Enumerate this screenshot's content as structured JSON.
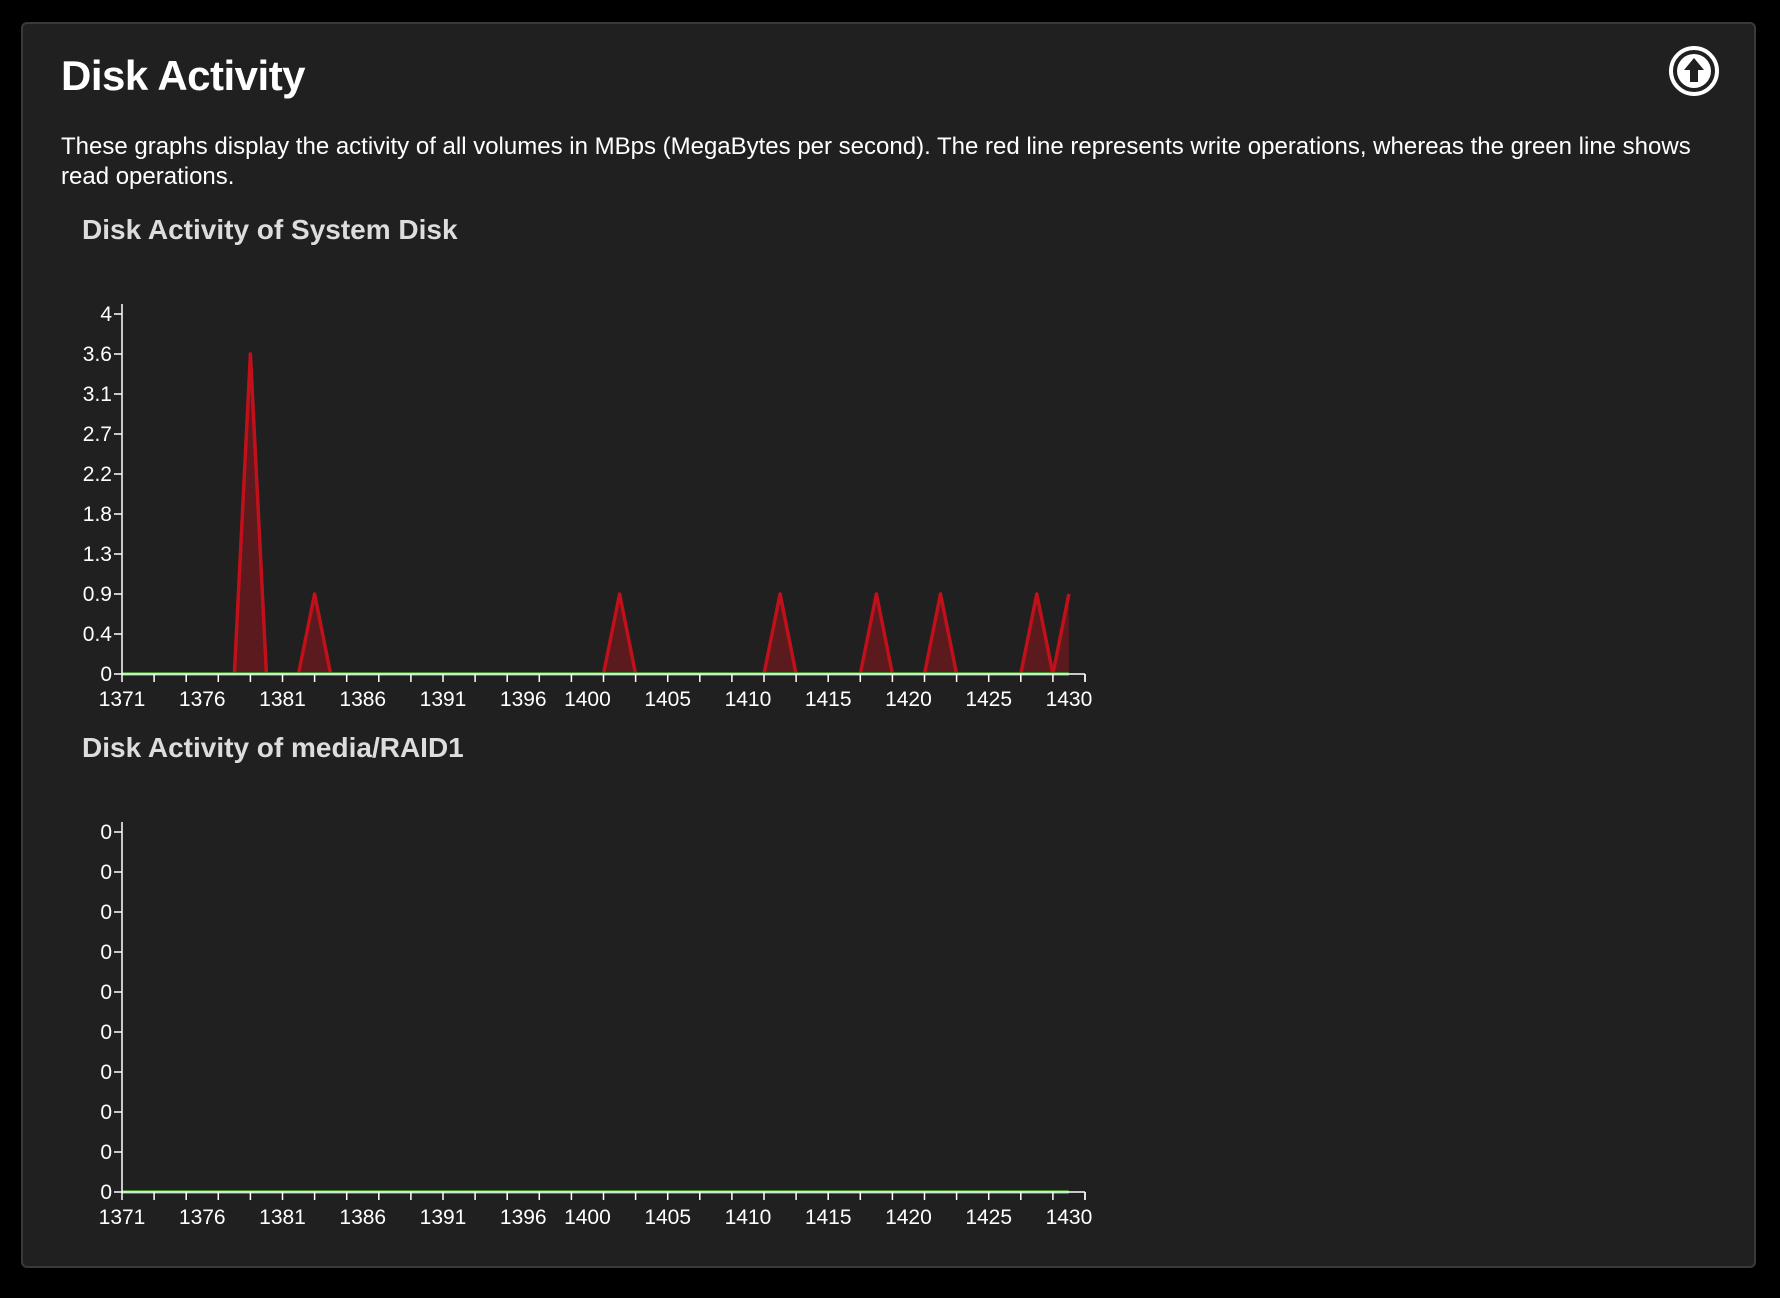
{
  "panel": {
    "title": "Disk Activity",
    "description": "These graphs display the activity of all volumes in MBps (MegaBytes per second). The red line represents write operations, whereas the green line shows read operations.",
    "collapse_icon": "arrow-up-circle-icon"
  },
  "colors": {
    "background": "#000000",
    "panel": "#202020",
    "write_line": "#c0101a",
    "write_fill": "#5a1a1e",
    "read_line": "#2fae2f",
    "axis": "#ffffff"
  },
  "chart_data": [
    {
      "type": "area",
      "title": "Disk Activity of System Disk",
      "xlabel": "",
      "ylabel": "",
      "xlim": [
        1371,
        1431
      ],
      "ylim": [
        0,
        4.5
      ],
      "x_ticks": [
        1371,
        1376,
        1381,
        1386,
        1391,
        1396,
        1400,
        1405,
        1410,
        1415,
        1420,
        1425,
        1430
      ],
      "y_ticks": [
        "0",
        "0.4",
        "0.9",
        "1.3",
        "1.8",
        "2.2",
        "2.7",
        "3.1",
        "3.6",
        "4"
      ],
      "grid": false,
      "series": [
        {
          "color": "#c0101a",
          "fill": "#5a1a1e",
          "x": [
            1371,
            1372,
            1373,
            1374,
            1375,
            1376,
            1377,
            1378,
            1379,
            1380,
            1381,
            1382,
            1383,
            1384,
            1385,
            1386,
            1387,
            1388,
            1389,
            1390,
            1391,
            1392,
            1393,
            1394,
            1395,
            1396,
            1397,
            1398,
            1399,
            1400,
            1401,
            1402,
            1403,
            1404,
            1405,
            1406,
            1407,
            1408,
            1409,
            1410,
            1411,
            1412,
            1413,
            1414,
            1415,
            1416,
            1417,
            1418,
            1419,
            1420,
            1421,
            1422,
            1423,
            1424,
            1425,
            1426,
            1427,
            1428,
            1429,
            1430
          ],
          "values": [
            0,
            0,
            0,
            0,
            0,
            0,
            0,
            0,
            4,
            0,
            0,
            0,
            1,
            0,
            0,
            0,
            0,
            0,
            0,
            0,
            0,
            0,
            0,
            0,
            0,
            0,
            0,
            0,
            0,
            0,
            0,
            1,
            0,
            0,
            0,
            0,
            0,
            0,
            0,
            0,
            0,
            1,
            0,
            0,
            0,
            0,
            0,
            1,
            0,
            0,
            0,
            1,
            0,
            0,
            0,
            0,
            0,
            1,
            0,
            1
          ]
        },
        {
          "color": "#2fae2f",
          "x": [
            1371,
            1372,
            1373,
            1374,
            1375,
            1376,
            1377,
            1378,
            1379,
            1380,
            1381,
            1382,
            1383,
            1384,
            1385,
            1386,
            1387,
            1388,
            1389,
            1390,
            1391,
            1392,
            1393,
            1394,
            1395,
            1396,
            1397,
            1398,
            1399,
            1400,
            1401,
            1402,
            1403,
            1404,
            1405,
            1406,
            1407,
            1408,
            1409,
            1410,
            1411,
            1412,
            1413,
            1414,
            1415,
            1416,
            1417,
            1418,
            1419,
            1420,
            1421,
            1422,
            1423,
            1424,
            1425,
            1426,
            1427,
            1428,
            1429,
            1430
          ],
          "values": [
            0,
            0,
            0,
            0,
            0,
            0,
            0,
            0,
            0,
            0,
            0,
            0,
            0,
            0,
            0,
            0,
            0,
            0,
            0,
            0,
            0,
            0,
            0,
            0,
            0,
            0,
            0,
            0,
            0,
            0,
            0,
            0,
            0,
            0,
            0,
            0,
            0,
            0,
            0,
            0,
            0,
            0,
            0,
            0,
            0,
            0,
            0,
            0,
            0,
            0,
            0,
            0,
            0,
            0,
            0,
            0,
            0,
            0,
            0,
            0
          ]
        }
      ]
    },
    {
      "type": "area",
      "title": "Disk Activity of media/RAID1",
      "xlabel": "",
      "ylabel": "",
      "xlim": [
        1371,
        1431
      ],
      "ylim": [
        0,
        1
      ],
      "x_ticks": [
        1371,
        1376,
        1381,
        1386,
        1391,
        1396,
        1400,
        1405,
        1410,
        1415,
        1420,
        1425,
        1430
      ],
      "y_ticks": [
        "0",
        "0",
        "0",
        "0",
        "0",
        "0",
        "0",
        "0",
        "0",
        "0"
      ],
      "grid": false,
      "series": [
        {
          "color": "#c0101a",
          "fill": "#5a1a1e",
          "x": [
            1371,
            1372,
            1373,
            1374,
            1375,
            1376,
            1377,
            1378,
            1379,
            1380,
            1381,
            1382,
            1383,
            1384,
            1385,
            1386,
            1387,
            1388,
            1389,
            1390,
            1391,
            1392,
            1393,
            1394,
            1395,
            1396,
            1397,
            1398,
            1399,
            1400,
            1401,
            1402,
            1403,
            1404,
            1405,
            1406,
            1407,
            1408,
            1409,
            1410,
            1411,
            1412,
            1413,
            1414,
            1415,
            1416,
            1417,
            1418,
            1419,
            1420,
            1421,
            1422,
            1423,
            1424,
            1425,
            1426,
            1427,
            1428,
            1429,
            1430
          ],
          "values": [
            0,
            0,
            0,
            0,
            0,
            0,
            0,
            0,
            0,
            0,
            0,
            0,
            0,
            0,
            0,
            0,
            0,
            0,
            0,
            0,
            0,
            0,
            0,
            0,
            0,
            0,
            0,
            0,
            0,
            0,
            0,
            0,
            0,
            0,
            0,
            0,
            0,
            0,
            0,
            0,
            0,
            0,
            0,
            0,
            0,
            0,
            0,
            0,
            0,
            0,
            0,
            0,
            0,
            0,
            0,
            0,
            0,
            0,
            0,
            0
          ]
        },
        {
          "color": "#2fae2f",
          "x": [
            1371,
            1372,
            1373,
            1374,
            1375,
            1376,
            1377,
            1378,
            1379,
            1380,
            1381,
            1382,
            1383,
            1384,
            1385,
            1386,
            1387,
            1388,
            1389,
            1390,
            1391,
            1392,
            1393,
            1394,
            1395,
            1396,
            1397,
            1398,
            1399,
            1400,
            1401,
            1402,
            1403,
            1404,
            1405,
            1406,
            1407,
            1408,
            1409,
            1410,
            1411,
            1412,
            1413,
            1414,
            1415,
            1416,
            1417,
            1418,
            1419,
            1420,
            1421,
            1422,
            1423,
            1424,
            1425,
            1426,
            1427,
            1428,
            1429,
            1430
          ],
          "values": [
            0,
            0,
            0,
            0,
            0,
            0,
            0,
            0,
            0,
            0,
            0,
            0,
            0,
            0,
            0,
            0,
            0,
            0,
            0,
            0,
            0,
            0,
            0,
            0,
            0,
            0,
            0,
            0,
            0,
            0,
            0,
            0,
            0,
            0,
            0,
            0,
            0,
            0,
            0,
            0,
            0,
            0,
            0,
            0,
            0,
            0,
            0,
            0,
            0,
            0,
            0,
            0,
            0,
            0,
            0,
            0,
            0,
            0,
            0,
            0
          ]
        }
      ]
    }
  ]
}
